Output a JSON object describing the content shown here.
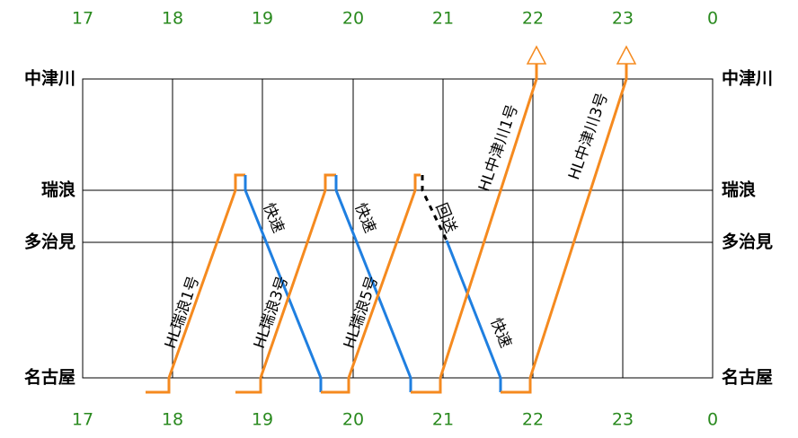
{
  "hours_top": [
    "17",
    "18",
    "19",
    "20",
    "21",
    "22",
    "23",
    "0"
  ],
  "hours_bottom": [
    "17",
    "18",
    "19",
    "20",
    "21",
    "22",
    "23",
    "0"
  ],
  "stations_left": [
    "中津川",
    "瑞浪",
    "多治見",
    "名古屋"
  ],
  "stations_right": [
    "中津川",
    "瑞浪",
    "多治見",
    "名古屋"
  ],
  "trains": [
    "HL瑞浪1号",
    "快速",
    "HL瑞浪3号",
    "快速",
    "HL瑞浪5号",
    "回送",
    "快速",
    "HL中津川1号",
    "HL中津川3号"
  ]
}
